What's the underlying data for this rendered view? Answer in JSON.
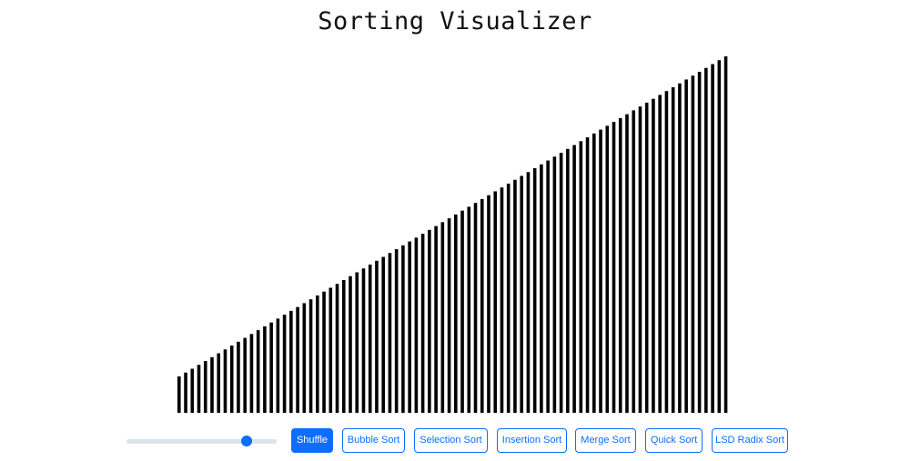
{
  "header": {
    "title": "Sorting Visualizer"
  },
  "colors": {
    "bar": "#000000",
    "accent": "#0d6efd",
    "track": "#dde2e8"
  },
  "speed_slider": {
    "value_fraction": 0.8
  },
  "controls": {
    "shuffle_label": "Shuffle",
    "bubble_label": "Bubble Sort",
    "selection_label": "Selection Sort",
    "insertion_label": "Insertion Sort",
    "merge_label": "Merge Sort",
    "quick_label": "Quick Sort",
    "radix_label": "LSD Radix Sort"
  },
  "array": {
    "count": 84,
    "min_value": 40,
    "max_value": 392
  }
}
